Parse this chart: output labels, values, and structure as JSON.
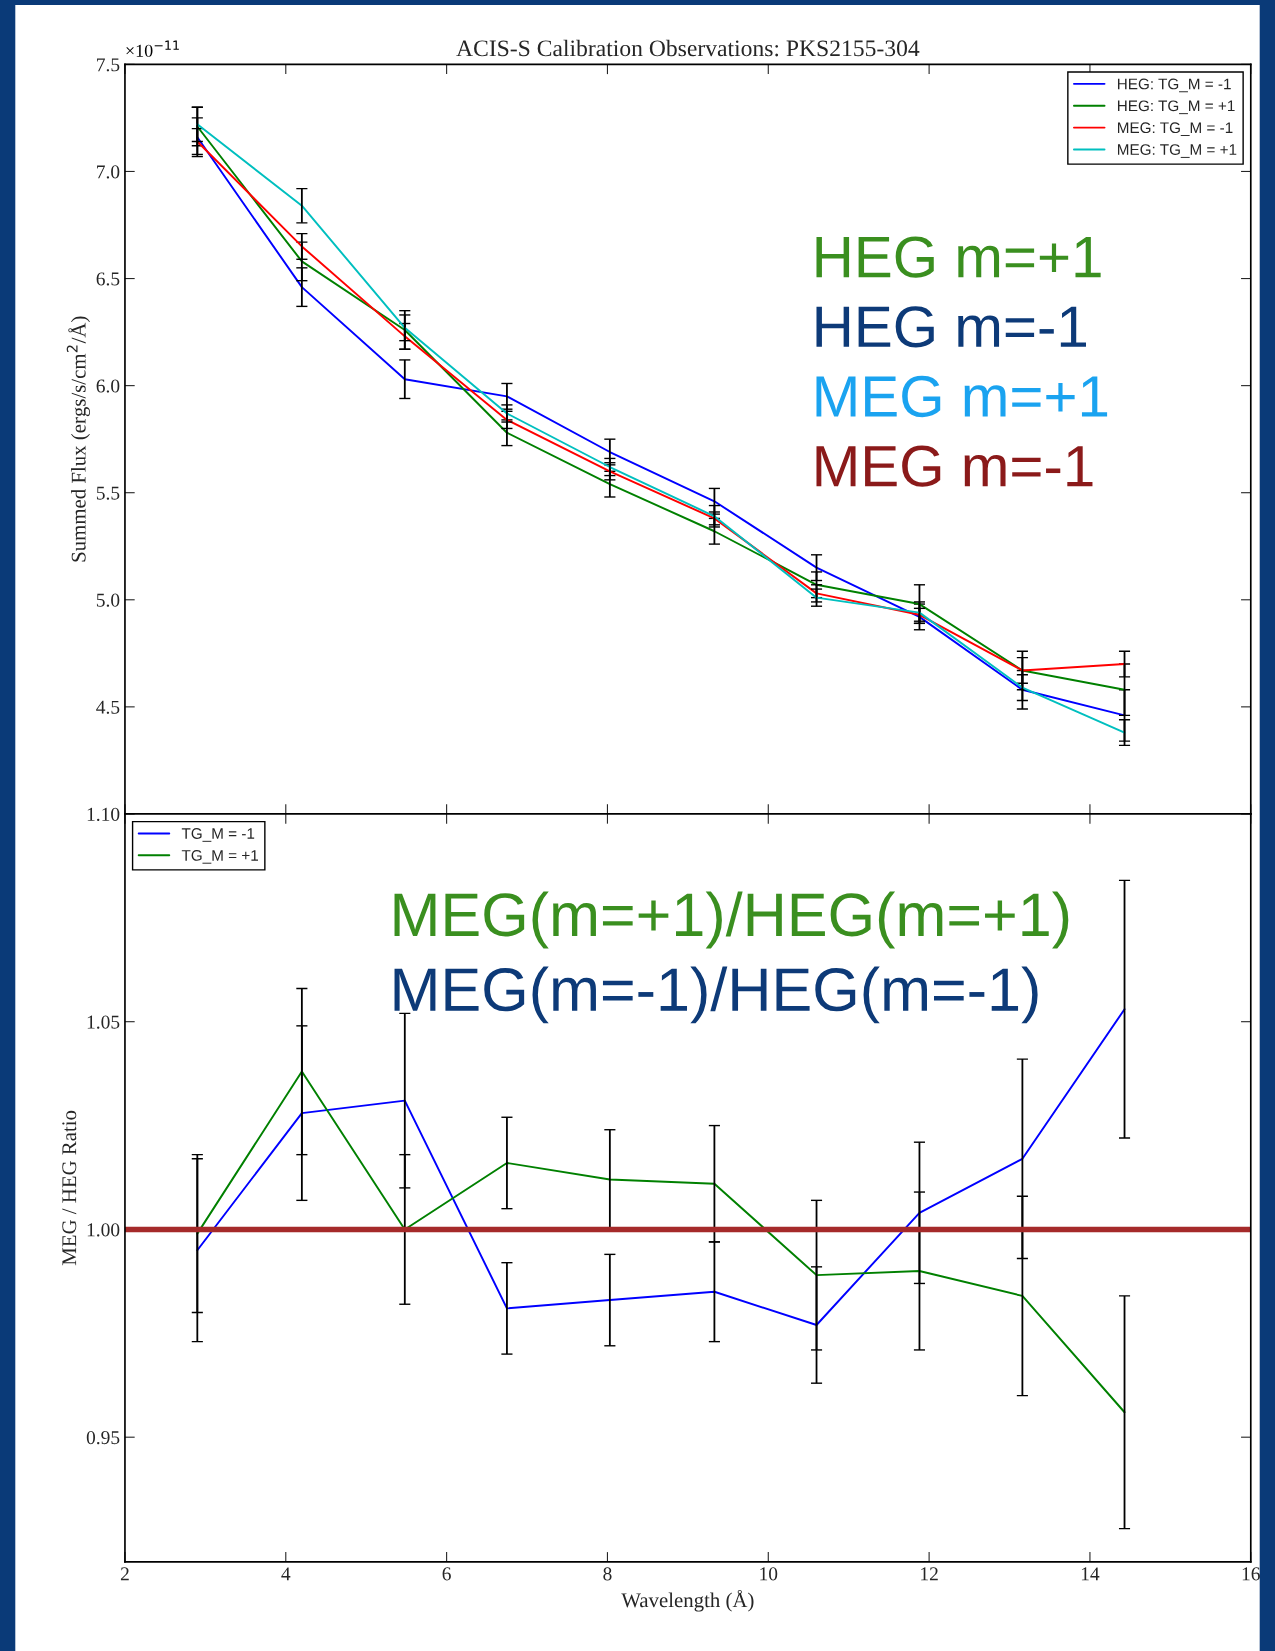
{
  "chart_data": [
    {
      "type": "line",
      "title": "ACIS-S Calibration Observations: PKS2155-304",
      "ylabel": "Summed Flux (ergs/s/cm$^{2}$/Å)",
      "x": [
        2.9,
        4.2,
        5.48,
        6.75,
        8.03,
        9.33,
        10.6,
        11.88,
        13.16,
        14.43
      ],
      "series": [
        {
          "name": "HEG: TG_M = -1",
          "color": "#0000ff",
          "values": [
            7.16,
            6.46,
            6.03,
            5.95,
            5.69,
            5.46,
            5.15,
            4.92,
            4.58,
            4.46
          ],
          "errors": [
            0.09,
            0.09,
            0.09,
            0.06,
            0.06,
            0.06,
            0.06,
            0.06,
            0.09,
            0.12
          ]
        },
        {
          "name": "HEG: TG_M = +1",
          "color": "#008000",
          "values": [
            7.21,
            6.58,
            6.26,
            5.78,
            5.54,
            5.32,
            5.07,
            4.98,
            4.67,
            4.58
          ],
          "errors": [
            0.09,
            0.09,
            0.09,
            0.06,
            0.06,
            0.06,
            0.06,
            0.09,
            0.09,
            0.12
          ]
        },
        {
          "name": "MEG: TG_M = -1",
          "color": "#ff0000",
          "values": [
            7.14,
            6.65,
            6.23,
            5.84,
            5.6,
            5.38,
            5.03,
            4.93,
            4.67,
            4.7
          ],
          "errors": [
            0.06,
            0.06,
            0.06,
            0.04,
            0.04,
            0.03,
            0.04,
            0.03,
            0.06,
            0.06
          ]
        },
        {
          "name": "MEG: TG_M = +1",
          "color": "#00bfbf",
          "values": [
            7.22,
            6.84,
            6.27,
            5.87,
            5.62,
            5.39,
            5.01,
            4.94,
            4.59,
            4.38
          ],
          "errors": [
            0.08,
            0.08,
            0.06,
            0.04,
            0.04,
            0.05,
            0.04,
            0.05,
            0.06,
            0.06
          ]
        }
      ],
      "xlim": [
        2,
        16
      ],
      "xticks": [
        2,
        4,
        6,
        8,
        10,
        12,
        14,
        16
      ],
      "ylim": [
        4.0,
        7.5
      ],
      "yticks": [
        {
          "value": 4.0,
          "label": null
        },
        4.5,
        {
          "value": 5.0,
          "label": "5.0"
        },
        5.5,
        {
          "value": 6.0,
          "label": "6.0"
        },
        6.5,
        {
          "value": 7.0,
          "label": "7.0"
        },
        7.5
      ],
      "tick_labels": "y",
      "legend": "top right",
      "grid": false,
      "annotations": [
        "×10$^{−11}$",
        "HEG m=+1",
        "HEG m=-1",
        "MEG m=+1",
        "MEG m=-1"
      ]
    },
    {
      "type": "line",
      "xlabel": "Wavelength (Å)",
      "ylabel": "MEG / HEG Ratio",
      "x": [
        2.9,
        4.2,
        5.48,
        6.75,
        8.03,
        9.33,
        10.6,
        11.88,
        13.16,
        14.43
      ],
      "series": [
        {
          "name": "TG_M = -1",
          "color": "#0000ff",
          "values": [
            0.995,
            1.028,
            1.031,
            0.981,
            0.983,
            0.985,
            0.977,
            1.004,
            1.017,
            1.053
          ],
          "errors": [
            0.022,
            0.021,
            0.021,
            0.011,
            0.011,
            0.012,
            0.014,
            0.017,
            0.024,
            0.031
          ]
        },
        {
          "name": "TG_M = +1",
          "color": "#008000",
          "values": [
            0.999,
            1.038,
            1.0,
            1.016,
            1.012,
            1.011,
            0.989,
            0.99,
            0.984,
            0.956
          ],
          "errors": [
            0.019,
            0.02,
            0.018,
            0.011,
            0.012,
            0.014,
            0.018,
            0.019,
            0.024,
            0.028
          ]
        }
      ],
      "ref_lines": [
        {
          "axis": "y",
          "value": 1.0,
          "color": "#a52a2a"
        }
      ],
      "xlim": [
        2,
        16
      ],
      "xticks": [
        2,
        4,
        6,
        8,
        10,
        12,
        14,
        16
      ],
      "ylim": [
        0.92,
        1.1
      ],
      "yticks": [
        {
          "value": 0.95,
          "label": "0.95"
        },
        {
          "value": 1.0,
          "label": "1.00"
        },
        {
          "value": 1.05,
          "label": "1.05"
        },
        {
          "value": 1.1,
          "label": "1.10"
        }
      ],
      "legend": "top left",
      "grid": false,
      "annotations": [
        "MEG(m=+1)/HEG(m=+1)",
        "MEG(m=-1)/HEG(m=-1)"
      ]
    }
  ]
}
